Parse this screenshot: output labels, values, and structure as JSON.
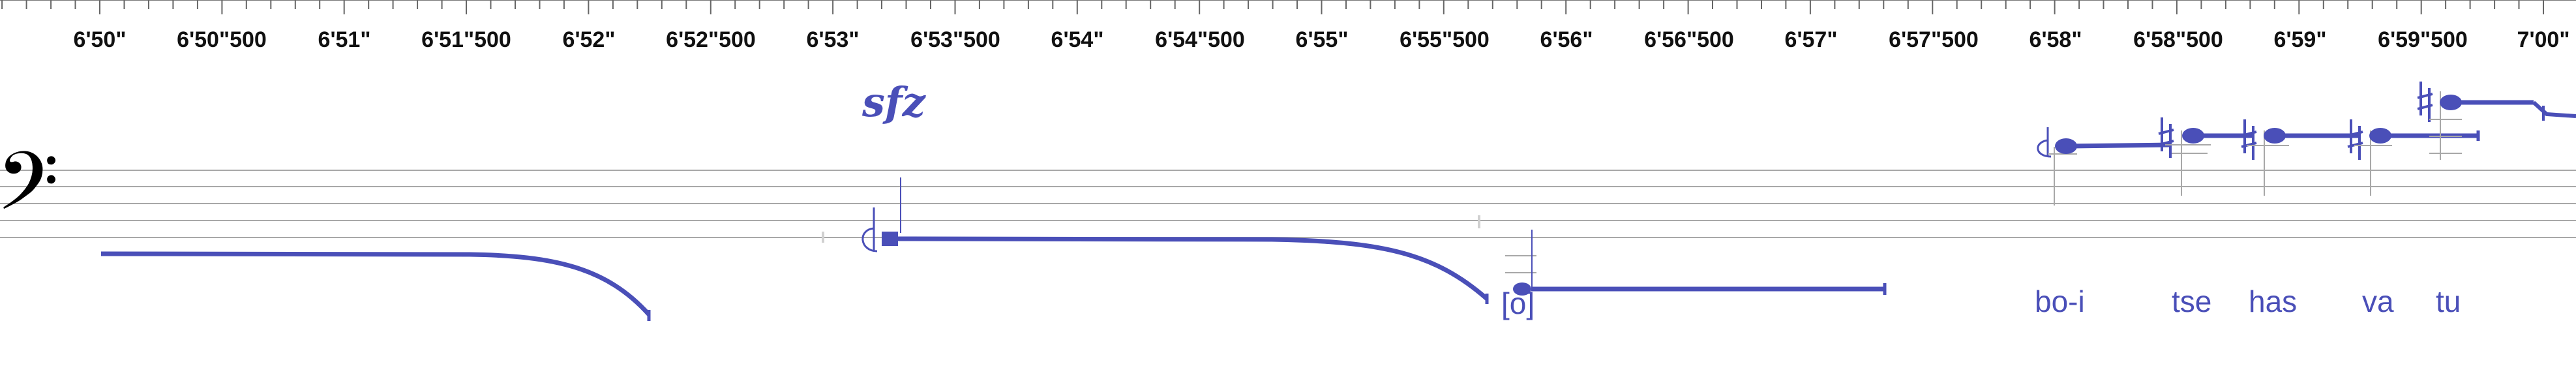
{
  "ruler": {
    "tick_labels": [
      "6'50\"",
      "6'50\"500",
      "6'51\"",
      "6'51\"500",
      "6'52\"",
      "6'52\"500",
      "6'53\"",
      "6'53\"500",
      "6'54\"",
      "6'54\"500",
      "6'55\"",
      "6'55\"500",
      "6'56\"",
      "6'56\"500",
      "6'57\"",
      "6'57\"500",
      "6'58\"",
      "6'58\"500",
      "6'59\"",
      "6'59\"500",
      "7'00\""
    ]
  },
  "staff": {
    "clef": "bass-clef",
    "clef_glyph": "𝄢"
  },
  "dynamics": {
    "mark": "sfz"
  },
  "notes": {
    "bracketed_head": "[o]"
  },
  "lyrics": {
    "syllables": [
      "bo-i",
      "tse",
      "has",
      "va",
      "tu"
    ]
  },
  "colors": {
    "notation": "#4a4fb8",
    "staff_lines": "#a8a8a8",
    "ruler_text": "#111111"
  }
}
